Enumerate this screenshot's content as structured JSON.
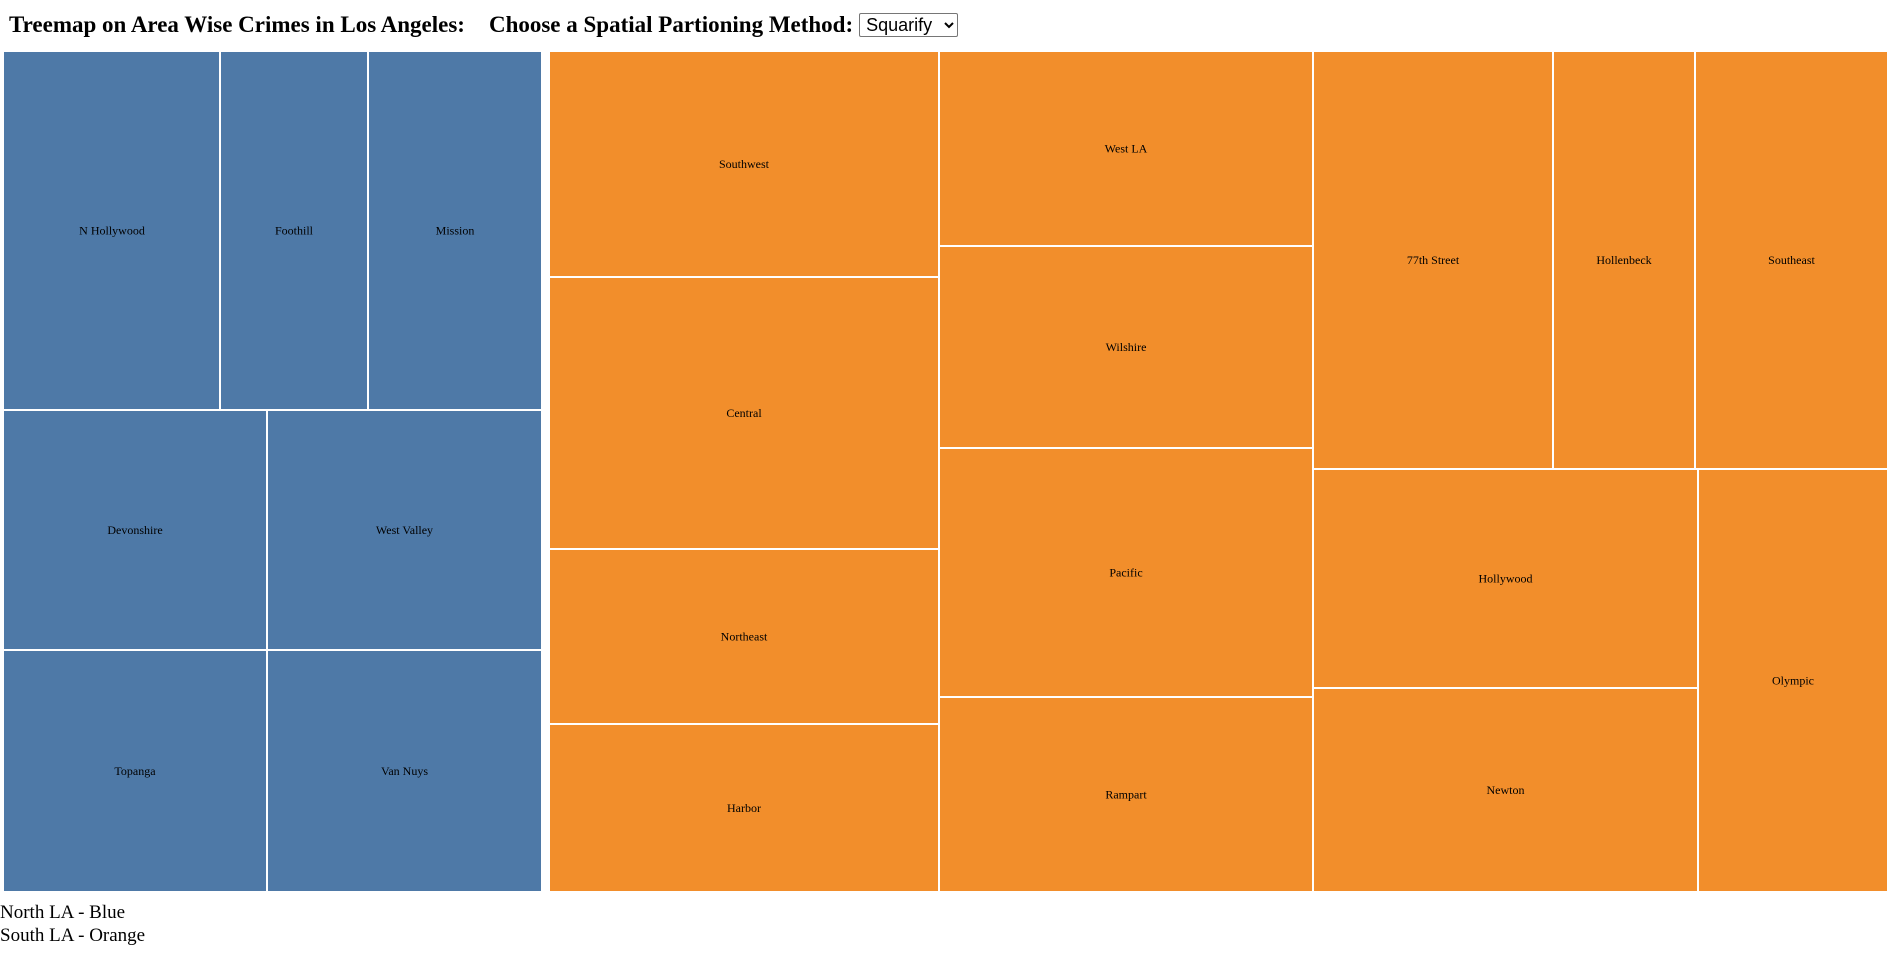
{
  "header": {
    "title": "Treemap on Area Wise Crimes in Los Angeles:",
    "method_label": "Choose a Spatial Partioning Method:",
    "method_selected": "Squarify",
    "method_options": [
      "Squarify"
    ]
  },
  "chart_data": {
    "type": "treemap",
    "title": "Treemap on Area Wise Crimes in Los Angeles:",
    "groups": [
      {
        "name": "North LA",
        "color": "#4e79a7",
        "areas": [
          {
            "label": "N Hollywood",
            "share": 0.118
          },
          {
            "label": "Foothill",
            "share": 0.08
          },
          {
            "label": "Mission",
            "share": 0.094
          },
          {
            "label": "Devonshire",
            "share": 0.095
          },
          {
            "label": "West Valley",
            "share": 0.099
          },
          {
            "label": "Topanga",
            "share": 0.096
          },
          {
            "label": "Van Nuys",
            "share": 0.099
          }
        ]
      },
      {
        "name": "South LA",
        "color": "#f28e2b",
        "areas": [
          {
            "label": "Southwest",
            "share": 0.045
          },
          {
            "label": "Central",
            "share": 0.055
          },
          {
            "label": "Northeast",
            "share": 0.036
          },
          {
            "label": "Harbor",
            "share": 0.034
          },
          {
            "label": "West LA",
            "share": 0.036
          },
          {
            "label": "Wilshire",
            "share": 0.038
          },
          {
            "label": "Pacific",
            "share": 0.047
          },
          {
            "label": "Rampart",
            "share": 0.037
          },
          {
            "label": "77th Street",
            "share": 0.05
          },
          {
            "label": "Hollenbeck",
            "share": 0.03
          },
          {
            "label": "Southeast",
            "share": 0.039
          },
          {
            "label": "Hollywood",
            "share": 0.042
          },
          {
            "label": "Newton",
            "share": 0.039
          },
          {
            "label": "Olympic",
            "share": 0.04
          }
        ]
      }
    ]
  },
  "legend": {
    "north": "North LA - Blue",
    "south": "South LA - Orange"
  }
}
